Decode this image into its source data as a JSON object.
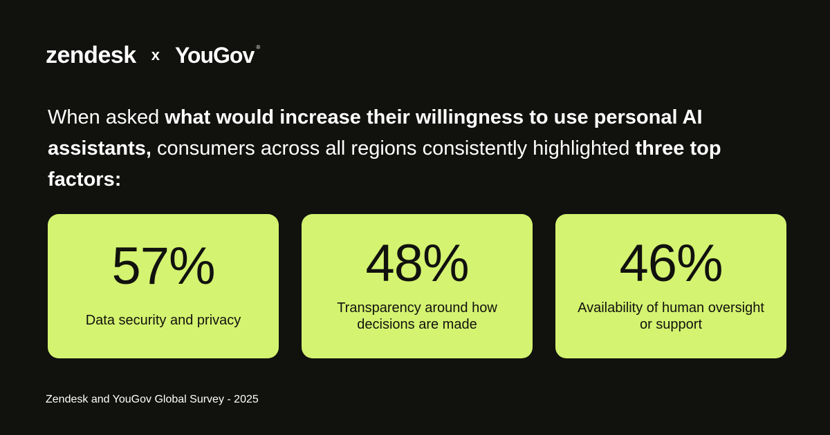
{
  "logos": {
    "brand1": "zendesk",
    "separator": "x",
    "brand2": "YouGov",
    "brand2_mark": "®"
  },
  "headline": {
    "part1": "When asked ",
    "part2_bold": "what would increase their willingness to use personal AI assistants,",
    "part3": " consumers across all regions consistently highlighted ",
    "part4_bold": "three top factors:"
  },
  "cards": [
    {
      "value": "57%",
      "percent": 57,
      "label": "Data security and privacy"
    },
    {
      "value": "48%",
      "percent": 48,
      "label": "Transparency around how decisions are made"
    },
    {
      "value": "46%",
      "percent": 46,
      "label": "Availability of human oversight or support"
    }
  ],
  "footer": {
    "source": "Zendesk and YouGov Global Survey - 2025"
  },
  "colors": {
    "background": "#11110e",
    "card": "#d4f370",
    "card_text": "#11110e",
    "text": "#ffffff"
  }
}
